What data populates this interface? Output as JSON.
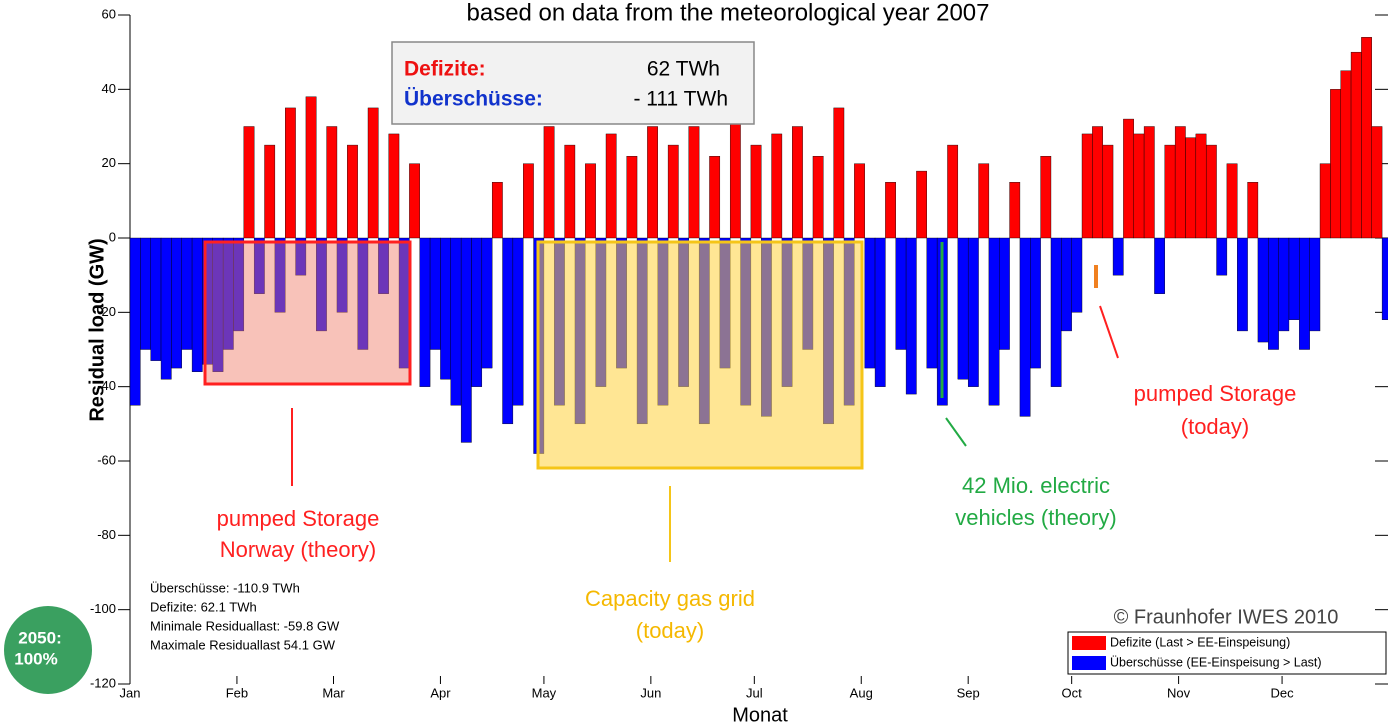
{
  "chart_data": {
    "type": "bar",
    "title": "based on data from the meteorological year 2007",
    "ylabel": "Residual load (GW)",
    "xlabel": "Monat",
    "xlim": [
      0,
      365
    ],
    "xticks": [
      {
        "value": 0,
        "label": "Jan"
      },
      {
        "value": 31,
        "label": "Feb"
      },
      {
        "value": 59,
        "label": "Mar"
      },
      {
        "value": 90,
        "label": "Apr"
      },
      {
        "value": 120,
        "label": "May"
      },
      {
        "value": 151,
        "label": "Jun"
      },
      {
        "value": 181,
        "label": "Jul"
      },
      {
        "value": 212,
        "label": "Aug"
      },
      {
        "value": 243,
        "label": "Sep"
      },
      {
        "value": 273,
        "label": "Oct"
      },
      {
        "value": 304,
        "label": "Nov"
      },
      {
        "value": 334,
        "label": "Dec"
      }
    ],
    "ylim": [
      -120,
      60
    ],
    "yticks": [
      -120,
      -100,
      -80,
      -60,
      -40,
      -20,
      0,
      20,
      40,
      60
    ],
    "positive_color": "#ff0000",
    "negative_color": "#0000ff",
    "x": [
      0,
      3,
      6,
      9,
      12,
      15,
      18,
      21,
      24,
      27,
      30,
      33,
      36,
      39,
      42,
      45,
      48,
      51,
      54,
      57,
      60,
      63,
      66,
      69,
      72,
      75,
      78,
      81,
      84,
      87,
      90,
      93,
      96,
      99,
      102,
      105,
      108,
      111,
      114,
      117,
      120,
      123,
      126,
      129,
      132,
      135,
      138,
      141,
      144,
      147,
      150,
      153,
      156,
      159,
      162,
      165,
      168,
      171,
      174,
      177,
      180,
      183,
      186,
      189,
      192,
      195,
      198,
      201,
      204,
      207,
      210,
      213,
      216,
      219,
      222,
      225,
      228,
      231,
      234,
      237,
      240,
      243,
      246,
      249,
      252,
      255,
      258,
      261,
      264,
      267,
      270,
      273,
      276,
      279,
      282,
      285,
      288,
      291,
      294,
      297,
      300,
      303,
      306,
      309,
      312,
      315,
      318,
      321,
      324,
      327,
      330,
      333,
      336,
      339,
      342,
      345,
      348,
      351,
      354,
      357,
      360,
      363
    ],
    "values": [
      -45,
      -30,
      -33,
      -38,
      -35,
      -30,
      -36,
      -34,
      -36,
      -30,
      -25,
      30,
      -15,
      25,
      -20,
      35,
      -10,
      38,
      -25,
      30,
      -20,
      25,
      -30,
      35,
      -15,
      28,
      -35,
      20,
      -40,
      -30,
      -38,
      -45,
      -55,
      -40,
      -35,
      15,
      -50,
      -45,
      20,
      -58,
      30,
      -45,
      25,
      -50,
      20,
      -40,
      28,
      -35,
      22,
      -50,
      30,
      -45,
      25,
      -40,
      30,
      -50,
      22,
      -35,
      35,
      -45,
      25,
      -48,
      28,
      -40,
      30,
      -30,
      22,
      -50,
      35,
      -45,
      20,
      -35,
      -40,
      15,
      -30,
      -42,
      18,
      -35,
      -45,
      25,
      -38,
      -40,
      20,
      -45,
      -30,
      15,
      -48,
      -35,
      22,
      -40,
      -25,
      -20,
      28,
      30,
      25,
      -10,
      32,
      28,
      30,
      -15,
      25,
      30,
      27,
      28,
      25,
      -10,
      20,
      -25,
      15,
      -28,
      -30,
      -25,
      -22,
      -30,
      -25,
      20,
      40,
      45,
      50,
      54,
      30,
      -22
    ],
    "summary_box": [
      [
        "Defizite:",
        "62 TWh"
      ],
      [
        "Überschüsse:",
        "- 111 TWh"
      ]
    ],
    "stats": [
      "Überschüsse: -110.9 TWh",
      "Defizite: 62.1 TWh",
      "Minimale Residuallast: -59.8 GW",
      "Maximale Residuallast 54.1 GW"
    ],
    "annotations": [
      [
        "pumped Storage",
        "Norway (theory)"
      ],
      [
        "Capacity gas grid",
        "(today)"
      ],
      [
        "42 Mio. electric",
        "vehicles (theory)"
      ],
      [
        "pumped Storage",
        "(today)"
      ]
    ],
    "copyright": "© Fraunhofer IWES 2010",
    "legend": [
      {
        "name": "Defizite (Last > EE-Einspeisung)",
        "color": "#ff0000"
      },
      {
        "name": "Überschüsse (EE-Einspeisung > Last)",
        "color": "#0000ff"
      }
    ],
    "logo": [
      "2050:",
      "100%"
    ]
  }
}
